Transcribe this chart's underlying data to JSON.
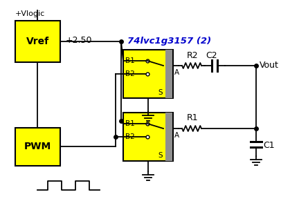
{
  "bg_color": "#ffffff",
  "yellow": "#FFFF00",
  "black": "#000000",
  "blue": "#0000cc",
  "gray": "#909090",
  "title": "74lvc1g3157 (2)",
  "vlogic_label": "+Vlogic",
  "vref_label": "Vref",
  "pwm_label": "PWM",
  "v250_label": "+2.50",
  "vout_label": "Vout",
  "r2_label": "R2",
  "c2_label": "C2",
  "r1_label": "R1",
  "c1_label": "C1",
  "b1_label": "B1",
  "b2_label": "B2",
  "s_label": "S",
  "a_label": "A"
}
